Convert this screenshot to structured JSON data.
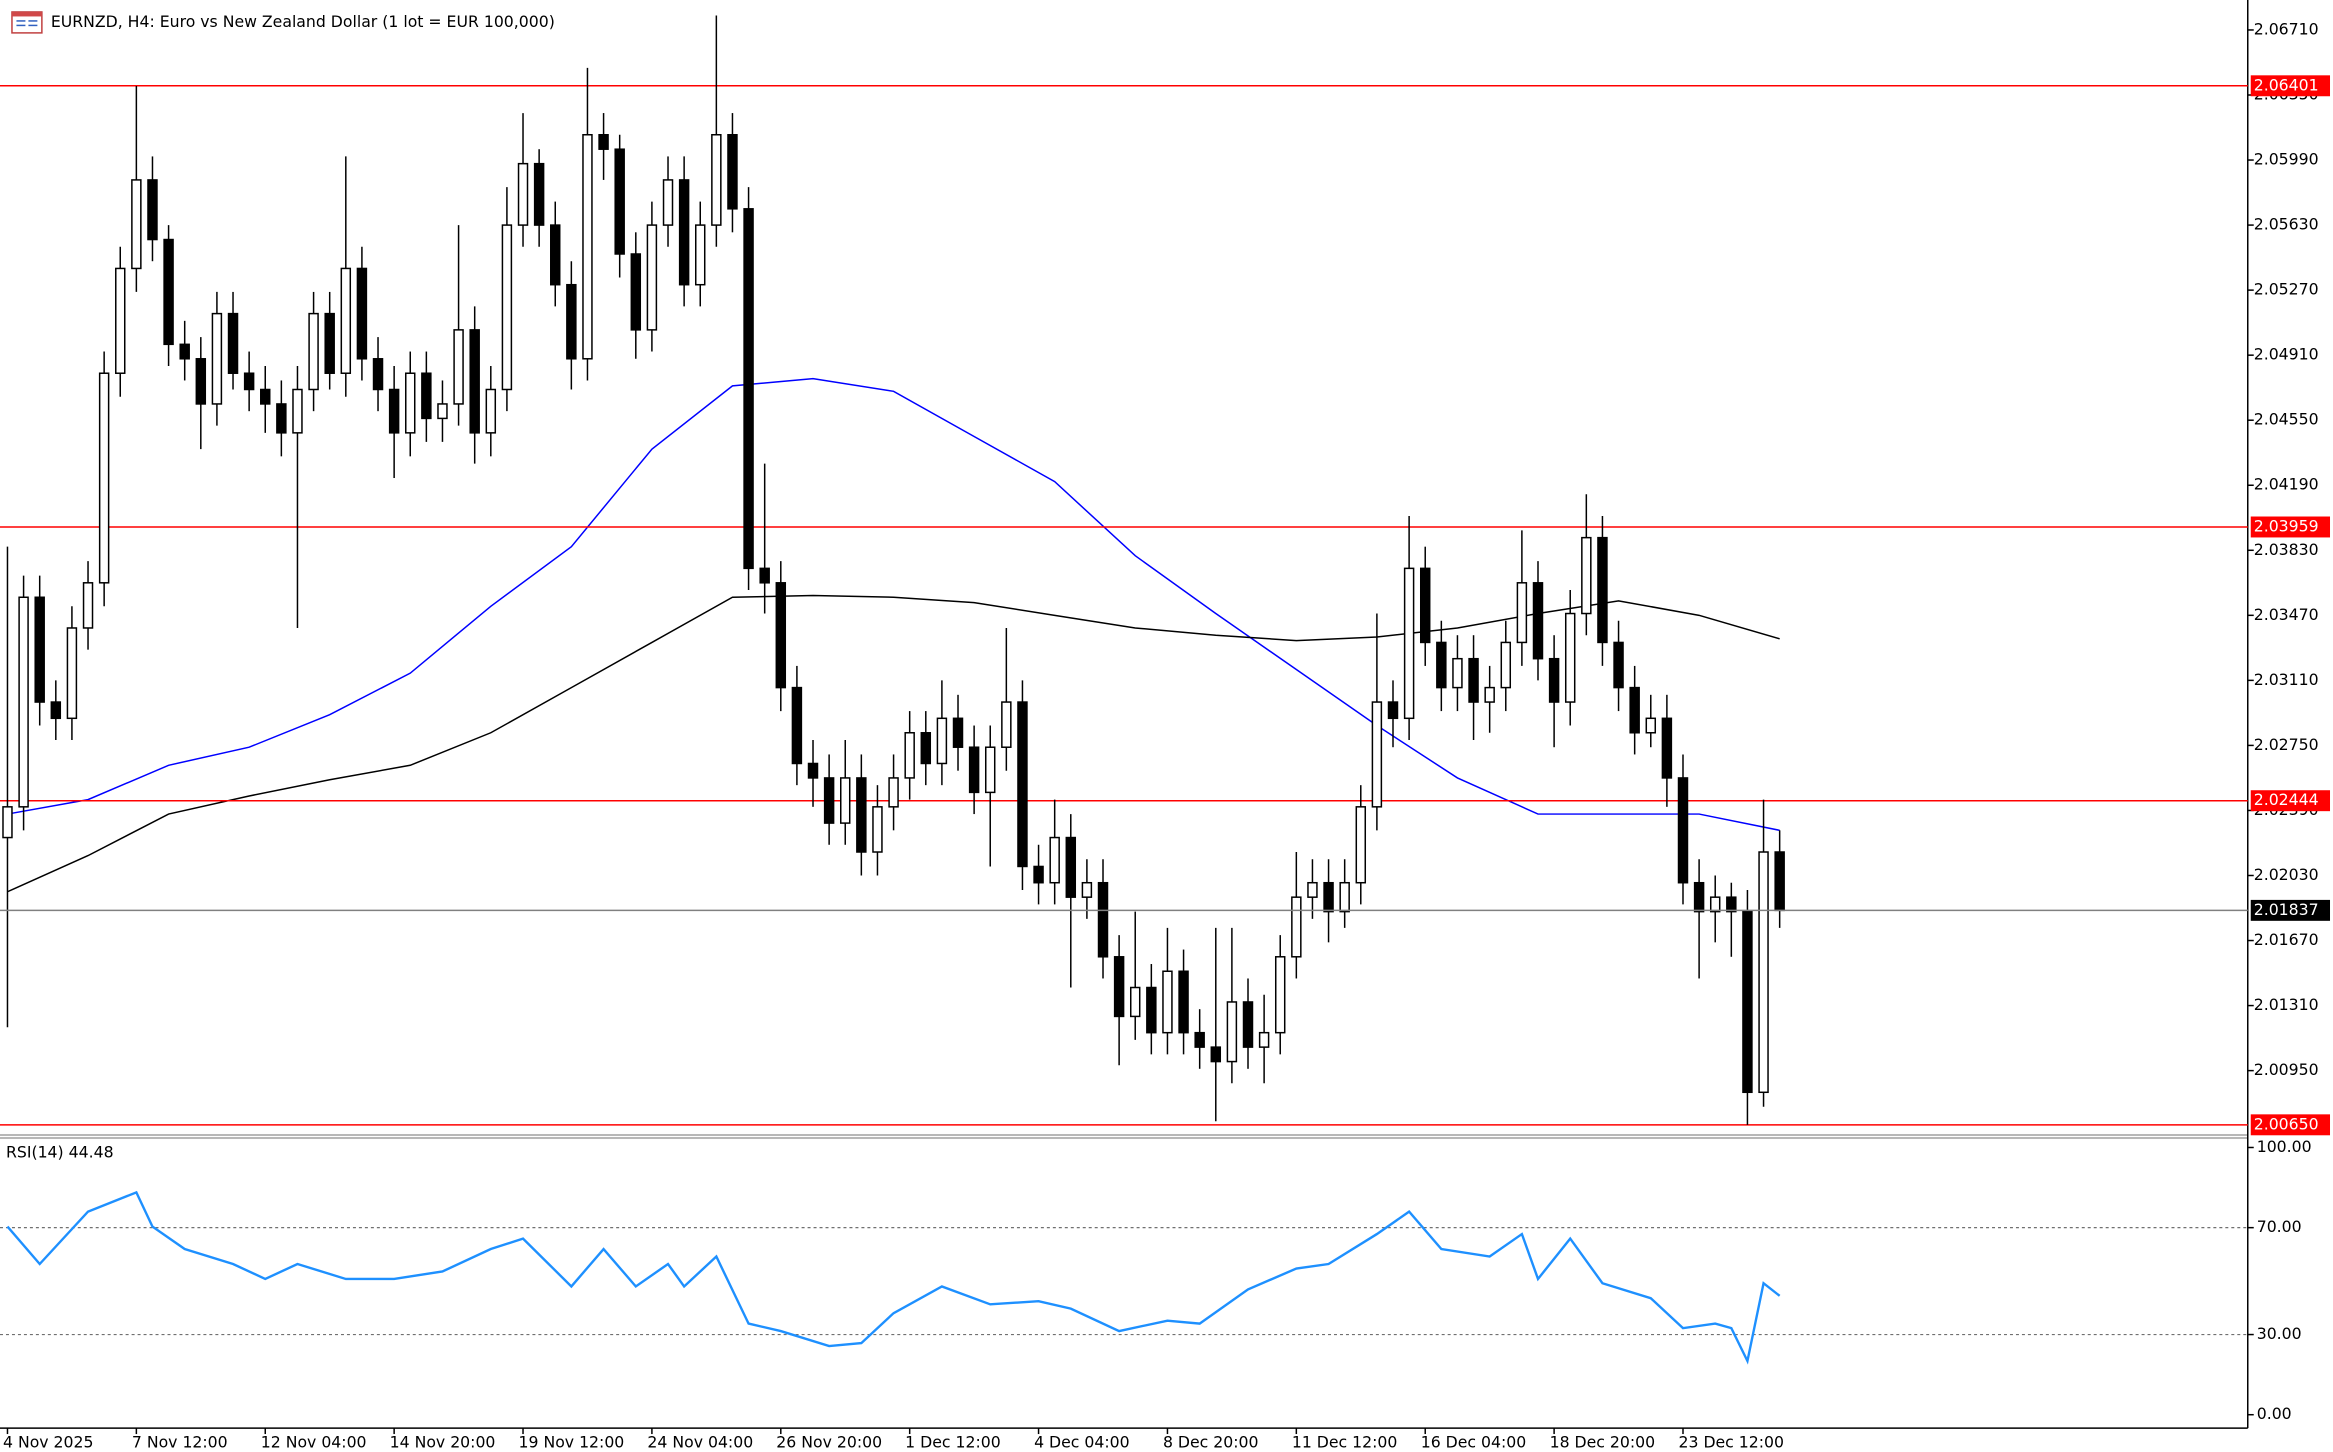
{
  "chart_data": [
    {
      "type": "candlestick",
      "title": "EURNZD, H4:  Euro vs New Zealand Dollar (1 lot = EUR 100,000)",
      "up_color": "#ffffff",
      "down_color": "#000000",
      "ylim": [
        2.00602,
        2.06851
      ],
      "yticks": [
        {
          "value": 2.0671,
          "label": "2.06710"
        },
        {
          "value": 2.0635,
          "label": "2.06350"
        },
        {
          "value": 2.0599,
          "label": "2.05990"
        },
        {
          "value": 2.0563,
          "label": "2.05630"
        },
        {
          "value": 2.0527,
          "label": "2.05270"
        },
        {
          "value": 2.0491,
          "label": "2.04910"
        },
        {
          "value": 2.0455,
          "label": "2.04550"
        },
        {
          "value": 2.0419,
          "label": "2.04190"
        },
        {
          "value": 2.0383,
          "label": "2.03830"
        },
        {
          "value": 2.0347,
          "label": "2.03470"
        },
        {
          "value": 2.0311,
          "label": "2.03110"
        },
        {
          "value": 2.0275,
          "label": "2.02750"
        },
        {
          "value": 2.0239,
          "label": "2.02390"
        },
        {
          "value": 2.0203,
          "label": "2.02030"
        },
        {
          "value": 2.0167,
          "label": "2.01670"
        },
        {
          "value": 2.0131,
          "label": "2.01310"
        },
        {
          "value": 2.0095,
          "label": "2.00950"
        }
      ],
      "grid": false,
      "levels": [
        2.06401,
        2.03959,
        2.02444,
        {
          "value": 2.0065,
          "label": "2.00650"
        }
      ],
      "level_color": "#ff0000",
      "last": 2.01837,
      "last_color": "#808080",
      "categories": [
        "4 Nov 2025",
        null,
        null,
        null,
        null,
        null,
        null,
        null,
        "7 Nov 12:00",
        null,
        null,
        null,
        null,
        null,
        null,
        null,
        "12 Nov 04:00",
        null,
        null,
        null,
        null,
        null,
        null,
        null,
        "14 Nov 20:00",
        null,
        null,
        null,
        null,
        null,
        null,
        null,
        "19 Nov 12:00",
        null,
        null,
        null,
        null,
        null,
        null,
        null,
        "24 Nov 04:00",
        null,
        null,
        null,
        null,
        null,
        null,
        null,
        "26 Nov 20:00",
        null,
        null,
        null,
        null,
        null,
        null,
        null,
        "1 Dec 12:00",
        null,
        null,
        null,
        null,
        null,
        null,
        null,
        "4 Dec 04:00",
        null,
        null,
        null,
        null,
        null,
        null,
        null,
        "8 Dec 20:00",
        null,
        null,
        null,
        null,
        null,
        null,
        null,
        "11 Dec 12:00",
        null,
        null,
        null,
        null,
        null,
        null,
        null,
        "16 Dec 04:00",
        null,
        null,
        null,
        null,
        null,
        null,
        null,
        "18 Dec 20:00",
        null,
        null,
        null,
        null,
        null,
        null,
        null,
        "23 Dec 12:00",
        null,
        null,
        null,
        null,
        null,
        null
      ],
      "candles": [
        [
          2.0224,
          2.0385,
          2.0119,
          2.0241
        ],
        [
          2.0241,
          2.0369,
          2.0228,
          2.0357
        ],
        [
          2.0357,
          2.0369,
          2.0286,
          2.0299
        ],
        [
          2.0299,
          2.0311,
          2.0278,
          2.029
        ],
        [
          2.029,
          2.0352,
          2.0278,
          2.034
        ],
        [
          2.034,
          2.0377,
          2.0328,
          2.0365
        ],
        [
          2.0365,
          2.0493,
          2.0352,
          2.0481
        ],
        [
          2.0481,
          2.0551,
          2.0468,
          2.0539
        ],
        [
          2.0539,
          2.064,
          2.0526,
          2.0588
        ],
        [
          2.0588,
          2.0601,
          2.0543,
          2.0555
        ],
        [
          2.0555,
          2.0563,
          2.0485,
          2.0497
        ],
        [
          2.0497,
          2.051,
          2.0477,
          2.0489
        ],
        [
          2.0489,
          2.0501,
          2.0439,
          2.0464
        ],
        [
          2.0464,
          2.0526,
          2.0452,
          2.0514
        ],
        [
          2.0514,
          2.0526,
          2.0472,
          2.0481
        ],
        [
          2.0481,
          2.0493,
          2.046,
          2.0472
        ],
        [
          2.0472,
          2.0485,
          2.0448,
          2.0464
        ],
        [
          2.0464,
          2.0477,
          2.0435,
          2.0448
        ],
        [
          2.0448,
          2.0485,
          2.034,
          2.0472
        ],
        [
          2.0472,
          2.0526,
          2.046,
          2.0514
        ],
        [
          2.0514,
          2.0526,
          2.0472,
          2.0481
        ],
        [
          2.0481,
          2.0601,
          2.0468,
          2.0539
        ],
        [
          2.0539,
          2.0551,
          2.0477,
          2.0489
        ],
        [
          2.0489,
          2.0501,
          2.046,
          2.0472
        ],
        [
          2.0472,
          2.0485,
          2.0423,
          2.0448
        ],
        [
          2.0448,
          2.0493,
          2.0435,
          2.0481
        ],
        [
          2.0481,
          2.0493,
          2.0443,
          2.0456
        ],
        [
          2.0456,
          2.0477,
          2.0443,
          2.0464
        ],
        [
          2.0464,
          2.0563,
          2.0452,
          2.0505
        ],
        [
          2.0505,
          2.0518,
          2.0431,
          2.0448
        ],
        [
          2.0448,
          2.0485,
          2.0435,
          2.0472
        ],
        [
          2.0472,
          2.0584,
          2.046,
          2.0563
        ],
        [
          2.0563,
          2.0625,
          2.0551,
          2.0597
        ],
        [
          2.0597,
          2.0605,
          2.0551,
          2.0563
        ],
        [
          2.0563,
          2.0576,
          2.0518,
          2.053
        ],
        [
          2.053,
          2.0543,
          2.0472,
          2.0489
        ],
        [
          2.0489,
          2.065,
          2.0477,
          2.0613
        ],
        [
          2.0613,
          2.0625,
          2.0588,
          2.0605
        ],
        [
          2.0605,
          2.0613,
          2.0534,
          2.0547
        ],
        [
          2.0547,
          2.0559,
          2.0489,
          2.0505
        ],
        [
          2.0505,
          2.0576,
          2.0493,
          2.0563
        ],
        [
          2.0563,
          2.0601,
          2.0551,
          2.0588
        ],
        [
          2.0588,
          2.0601,
          2.0518,
          2.053
        ],
        [
          2.053,
          2.0576,
          2.0518,
          2.0563
        ],
        [
          2.0563,
          2.0679,
          2.0551,
          2.0613
        ],
        [
          2.0613,
          2.0625,
          2.0559,
          2.0572
        ],
        [
          2.0572,
          2.0584,
          2.0361,
          2.0373
        ],
        [
          2.0373,
          2.0431,
          2.0348,
          2.0365
        ],
        [
          2.0365,
          2.0377,
          2.0294,
          2.0307
        ],
        [
          2.0307,
          2.0319,
          2.0253,
          2.0265
        ],
        [
          2.0265,
          2.0278,
          2.0241,
          2.0257
        ],
        [
          2.0257,
          2.027,
          2.022,
          2.0232
        ],
        [
          2.0232,
          2.0278,
          2.022,
          2.0257
        ],
        [
          2.0257,
          2.027,
          2.0203,
          2.0216
        ],
        [
          2.0216,
          2.0253,
          2.0203,
          2.0241
        ],
        [
          2.0241,
          2.027,
          2.0228,
          2.0257
        ],
        [
          2.0257,
          2.0294,
          2.0245,
          2.0282
        ],
        [
          2.0282,
          2.0294,
          2.0253,
          2.0265
        ],
        [
          2.0265,
          2.0311,
          2.0253,
          2.029
        ],
        [
          2.029,
          2.0303,
          2.0261,
          2.0274
        ],
        [
          2.0274,
          2.0286,
          2.0237,
          2.0249
        ],
        [
          2.0249,
          2.0286,
          2.0208,
          2.0274
        ],
        [
          2.0274,
          2.034,
          2.0261,
          2.0299
        ],
        [
          2.0299,
          2.0311,
          2.0195,
          2.0208
        ],
        [
          2.0208,
          2.022,
          2.0187,
          2.0199
        ],
        [
          2.0199,
          2.0245,
          2.0187,
          2.0224
        ],
        [
          2.0224,
          2.0237,
          2.0141,
          2.0191
        ],
        [
          2.0191,
          2.0212,
          2.0179,
          2.0199
        ],
        [
          2.0199,
          2.0212,
          2.0146,
          2.0158
        ],
        [
          2.0158,
          2.017,
          2.0098,
          2.0125
        ],
        [
          2.0125,
          2.0183,
          2.0112,
          2.0141
        ],
        [
          2.0141,
          2.0154,
          2.0104,
          2.0116
        ],
        [
          2.0116,
          2.0174,
          2.0104,
          2.015
        ],
        [
          2.015,
          2.0162,
          2.0104,
          2.0116
        ],
        [
          2.0116,
          2.0129,
          2.0096,
          2.0108
        ],
        [
          2.0108,
          2.0174,
          2.0067,
          2.01
        ],
        [
          2.01,
          2.0174,
          2.0088,
          2.0133
        ],
        [
          2.0133,
          2.0146,
          2.0096,
          2.0108
        ],
        [
          2.0108,
          2.0137,
          2.0088,
          2.0116
        ],
        [
          2.0116,
          2.017,
          2.0104,
          2.0158
        ],
        [
          2.0158,
          2.0216,
          2.0146,
          2.0191
        ],
        [
          2.0191,
          2.0212,
          2.0179,
          2.0199
        ],
        [
          2.0199,
          2.0212,
          2.0166,
          2.0183
        ],
        [
          2.0183,
          2.0212,
          2.0174,
          2.0199
        ],
        [
          2.0199,
          2.0253,
          2.0187,
          2.0241
        ],
        [
          2.0241,
          2.0348,
          2.0228,
          2.0299
        ],
        [
          2.0299,
          2.0311,
          2.0274,
          2.029
        ],
        [
          2.029,
          2.0402,
          2.0278,
          2.0373
        ],
        [
          2.0373,
          2.0385,
          2.0319,
          2.0332
        ],
        [
          2.0332,
          2.0344,
          2.0294,
          2.0307
        ],
        [
          2.0307,
          2.0336,
          2.0294,
          2.0323
        ],
        [
          2.0323,
          2.0336,
          2.0278,
          2.0299
        ],
        [
          2.0299,
          2.0319,
          2.0282,
          2.0307
        ],
        [
          2.0307,
          2.0344,
          2.0294,
          2.0332
        ],
        [
          2.0332,
          2.0394,
          2.0319,
          2.0365
        ],
        [
          2.0365,
          2.0377,
          2.0311,
          2.0323
        ],
        [
          2.0323,
          2.0336,
          2.0274,
          2.0299
        ],
        [
          2.0299,
          2.0361,
          2.0286,
          2.0348
        ],
        [
          2.0348,
          2.0414,
          2.0336,
          2.039
        ],
        [
          2.039,
          2.0402,
          2.0319,
          2.0332
        ],
        [
          2.0332,
          2.0344,
          2.0294,
          2.0307
        ],
        [
          2.0307,
          2.0319,
          2.027,
          2.0282
        ],
        [
          2.0282,
          2.0303,
          2.0274,
          2.029
        ],
        [
          2.029,
          2.0303,
          2.0241,
          2.0257
        ],
        [
          2.0257,
          2.027,
          2.0187,
          2.0199
        ],
        [
          2.0199,
          2.0212,
          2.0146,
          2.0183
        ],
        [
          2.0183,
          2.0203,
          2.0166,
          2.0191
        ],
        [
          2.0191,
          2.0199,
          2.0158,
          2.0183
        ],
        [
          2.0183,
          2.0195,
          2.0065,
          2.0083
        ],
        [
          2.0083,
          2.0245,
          2.0075,
          2.0216
        ],
        [
          2.0216,
          2.0228,
          2.0174,
          2.01837
        ]
      ],
      "overlays": [
        {
          "color": "#0000ff",
          "x": [
            0,
            5,
            10,
            15,
            20,
            25,
            30,
            35,
            40,
            45,
            50,
            55,
            60,
            65,
            70,
            75,
            80,
            85,
            90,
            95,
            100,
            105,
            110
          ],
          "values": [
            2.0237,
            2.0245,
            2.0264,
            2.0274,
            2.0292,
            2.0315,
            2.0352,
            2.0385,
            2.0439,
            2.0474,
            2.0478,
            2.0471,
            2.0446,
            2.0421,
            2.038,
            2.0348,
            2.0317,
            2.0286,
            2.0257,
            2.0237,
            2.0237,
            2.0237,
            2.0228
          ]
        },
        {
          "color": "#000000",
          "x": [
            0,
            5,
            10,
            15,
            20,
            25,
            30,
            35,
            40,
            45,
            50,
            55,
            60,
            65,
            70,
            75,
            80,
            85,
            90,
            95,
            100,
            105,
            110
          ],
          "values": [
            2.0194,
            2.0214,
            2.0237,
            2.0247,
            2.0256,
            2.0264,
            2.0282,
            2.0307,
            2.0332,
            2.0357,
            2.0358,
            2.0357,
            2.0354,
            2.0347,
            2.034,
            2.0336,
            2.0333,
            2.0335,
            2.034,
            2.0348,
            2.0355,
            2.0347,
            2.0334
          ]
        }
      ]
    },
    {
      "type": "line",
      "title": "RSI(14) 44.48",
      "color": "#1e90ff",
      "ylim": [
        -5,
        103
      ],
      "yticks": [
        {
          "value": 100,
          "label": "100.00"
        },
        {
          "value": 70,
          "label": "70.00"
        },
        {
          "value": 30,
          "label": "30.00"
        },
        {
          "value": 0,
          "label": "0.00"
        }
      ],
      "levels": [
        70,
        30
      ],
      "x": [
        0,
        2,
        5,
        8,
        9,
        11,
        14,
        16,
        18,
        21,
        24,
        27,
        30,
        32,
        35,
        37,
        39,
        41,
        42,
        44,
        46,
        48,
        51,
        53,
        55,
        58,
        61,
        64,
        66,
        69,
        72,
        74,
        77,
        80,
        82,
        85,
        87,
        89,
        92,
        94,
        95,
        97,
        99,
        102,
        104,
        106,
        107,
        108,
        109,
        110
      ],
      "values": [
        70.4,
        56.4,
        76,
        83.2,
        70.4,
        62,
        56.4,
        50.8,
        56.4,
        50.8,
        50.8,
        53.6,
        62,
        65.9,
        48,
        62,
        48,
        56.4,
        48,
        59.2,
        34.1,
        31.3,
        25.7,
        26.8,
        38,
        48,
        41.3,
        42.5,
        39.7,
        31.3,
        35.2,
        34.1,
        46.9,
        54.7,
        56.4,
        67.6,
        76,
        62,
        59.2,
        67.6,
        50.8,
        65.9,
        49.2,
        43.6,
        32.4,
        34.1,
        32.4,
        20.1,
        49.2,
        44.48
      ]
    }
  ]
}
